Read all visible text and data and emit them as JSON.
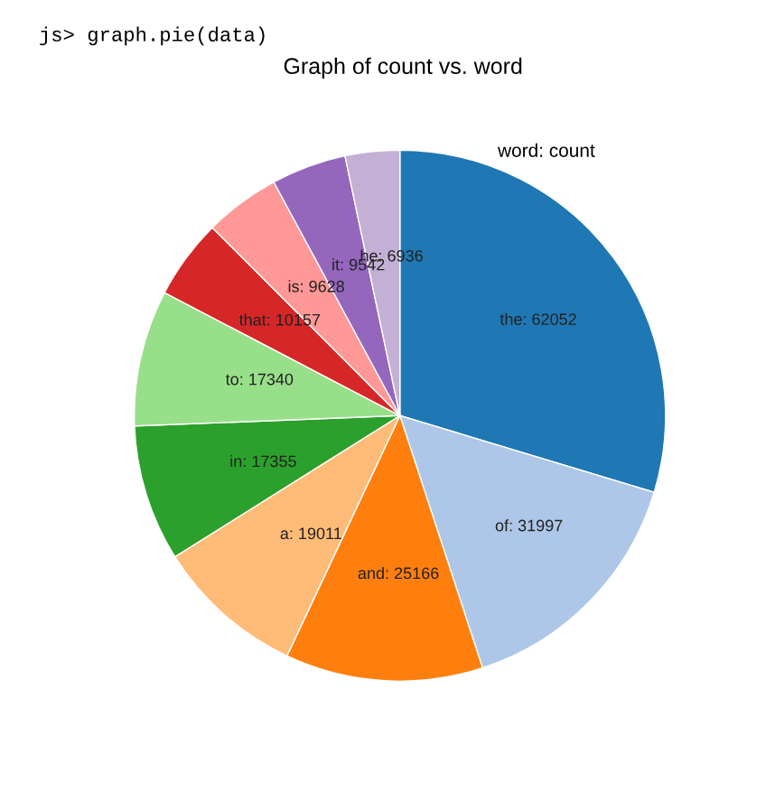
{
  "chart_data": {
    "type": "pie",
    "title": "Graph of count vs. word",
    "annotations": [
      "js> graph.pie(data)",
      "word: count"
    ],
    "categories": [
      "the",
      "of",
      "and",
      "a",
      "in",
      "to",
      "that",
      "is",
      "it",
      "he"
    ],
    "values": [
      62052,
      31997,
      25166,
      19011,
      17355,
      17340,
      10157,
      9628,
      9542,
      6936
    ],
    "colors": [
      "#1f77b4",
      "#aec7e8",
      "#ff7f0e",
      "#ffbb78",
      "#2ca02c",
      "#98df8a",
      "#d62728",
      "#ff9896",
      "#9467bd",
      "#c5b0d5"
    ],
    "value_labels": [
      ": 62052",
      ": 31997",
      ": 25166",
      ": 19011",
      ": 17355",
      ": 17340",
      ": 10157",
      ": 9628",
      ": 9542",
      ": 6936"
    ]
  }
}
